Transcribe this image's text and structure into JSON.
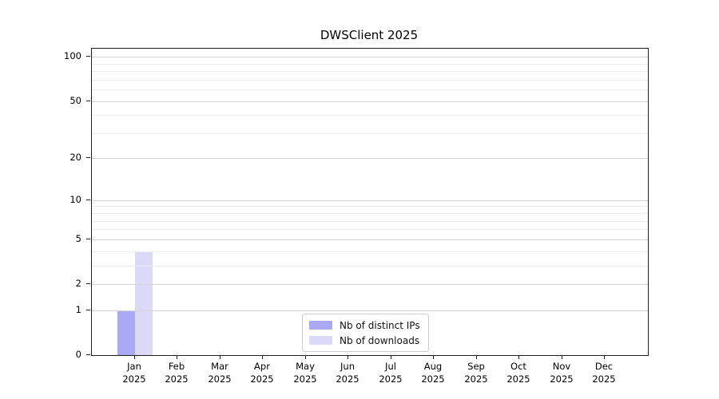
{
  "chart_data": {
    "type": "bar",
    "title": "DWSClient 2025",
    "categories": [
      "Jan\n2025",
      "Feb\n2025",
      "Mar\n2025",
      "Apr\n2025",
      "May\n2025",
      "Jun\n2025",
      "Jul\n2025",
      "Aug\n2025",
      "Sep\n2025",
      "Oct\n2025",
      "Nov\n2025",
      "Dec\n2025"
    ],
    "series": [
      {
        "name": "Nb of distinct IPs",
        "color": "#a9a9f5",
        "values": [
          1,
          0,
          0,
          0,
          0,
          0,
          0,
          0,
          0,
          0,
          0,
          0
        ]
      },
      {
        "name": "Nb of downloads",
        "color": "#dadaf8",
        "values": [
          4,
          0,
          0,
          0,
          0,
          0,
          0,
          0,
          0,
          0,
          0,
          0
        ]
      }
    ],
    "xlabel": "",
    "ylabel": "",
    "yscale": "log10(value+1)",
    "ylim": [
      0,
      114
    ],
    "yticks": [
      {
        "value": 0,
        "label": "0"
      },
      {
        "value": 1,
        "label": "1"
      },
      {
        "value": 2,
        "label": "2"
      },
      {
        "value": 5,
        "label": "5"
      },
      {
        "value": 10,
        "label": "10"
      },
      {
        "value": 20,
        "label": "20"
      },
      {
        "value": 50,
        "label": "50"
      },
      {
        "value": 100,
        "label": "100"
      }
    ],
    "minor_gridlines": [
      3,
      4,
      6,
      7,
      8,
      9,
      30,
      40,
      60,
      70,
      80,
      90
    ],
    "grid": true,
    "legend_position": "lower center"
  },
  "colors": {
    "major_grid": "#d4d4d4",
    "minor_grid": "#ededed",
    "axis": "#1f1f1f",
    "text": "#000000",
    "legend_border": "#cccccc",
    "background": "#ffffff"
  }
}
